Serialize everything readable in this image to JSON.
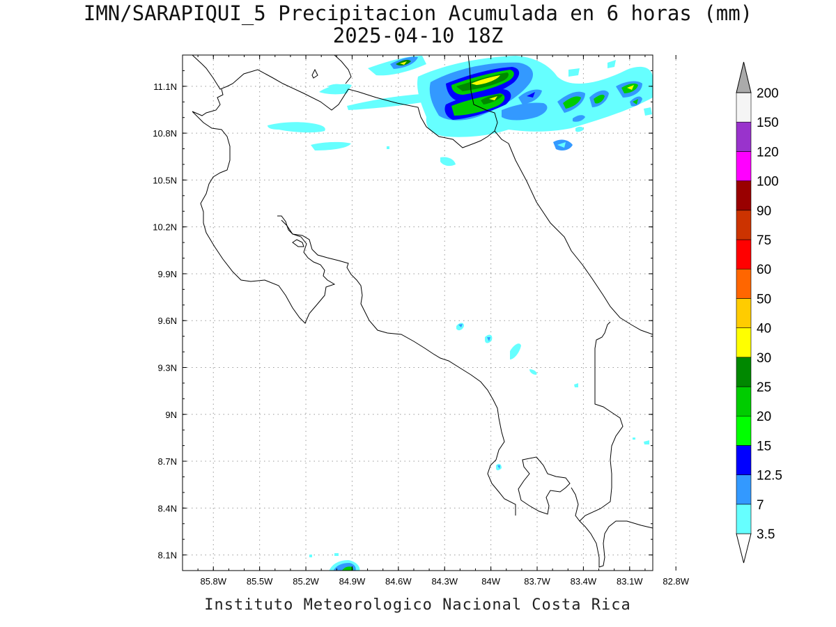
{
  "title": {
    "line1": "IMN/SARAPIQUI_5 Precipitacion Acumulada en 6 horas (mm)",
    "line2": "2025-04-10 18Z"
  },
  "footer": "Instituto Meteorologico Nacional Costa Rica",
  "map": {
    "lon_range": [
      -86.0,
      -82.95
    ],
    "lat_range": [
      8.0,
      11.3
    ],
    "lon_ticks": [
      {
        "value": -85.8,
        "label": "85.8W"
      },
      {
        "value": -85.5,
        "label": "85.5W"
      },
      {
        "value": -85.2,
        "label": "85.2W"
      },
      {
        "value": -84.9,
        "label": "84.9W"
      },
      {
        "value": -84.6,
        "label": "84.6W"
      },
      {
        "value": -84.3,
        "label": "84.3W"
      },
      {
        "value": -84.0,
        "label": "84W"
      },
      {
        "value": -83.7,
        "label": "83.7W"
      },
      {
        "value": -83.4,
        "label": "83.4W"
      },
      {
        "value": -83.1,
        "label": "83.1W"
      },
      {
        "value": -82.8,
        "label": "82.8W"
      }
    ],
    "lat_ticks": [
      {
        "value": 11.1,
        "label": "11.1N"
      },
      {
        "value": 10.8,
        "label": "10.8N"
      },
      {
        "value": 10.5,
        "label": "10.5N"
      },
      {
        "value": 10.2,
        "label": "10.2N"
      },
      {
        "value": 9.9,
        "label": "9.9N"
      },
      {
        "value": 9.6,
        "label": "9.6N"
      },
      {
        "value": 9.3,
        "label": "9.3N"
      },
      {
        "value": 9.0,
        "label": "9N"
      },
      {
        "value": 8.7,
        "label": "8.7N"
      },
      {
        "value": 8.4,
        "label": "8.4N"
      },
      {
        "value": 8.1,
        "label": "8.1N"
      }
    ]
  },
  "colorbar": {
    "levels": [
      "3.5",
      "7",
      "12.5",
      "15",
      "20",
      "25",
      "30",
      "40",
      "50",
      "60",
      "75",
      "90",
      "100",
      "120",
      "150",
      "200"
    ],
    "colors": [
      "#66ffff",
      "#3399ff",
      "#0000ff",
      "#00ff00",
      "#00cc00",
      "#008800",
      "#ffff00",
      "#ffcc00",
      "#ff6600",
      "#ff0000",
      "#cc3300",
      "#990000",
      "#ff00ff",
      "#9933cc",
      "#f5f5f5",
      "#aaaaaa"
    ],
    "below_color": "#ffffff",
    "above_color": "#aaaaaa"
  }
}
